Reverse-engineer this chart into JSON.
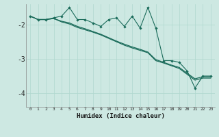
{
  "xlabel": "Humidex (Indice chaleur)",
  "bg_color": "#cde8e2",
  "grid_color": "#b0d8cf",
  "line_color": "#1a6b5a",
  "x": [
    0,
    1,
    2,
    3,
    4,
    5,
    6,
    7,
    8,
    9,
    10,
    11,
    12,
    13,
    14,
    15,
    16,
    17,
    18,
    19,
    20,
    21,
    22,
    23
  ],
  "line_jagged": [
    -1.75,
    -1.85,
    -1.85,
    -1.8,
    -1.75,
    -1.5,
    -1.85,
    -1.85,
    -1.95,
    -2.05,
    -1.85,
    -1.8,
    -2.05,
    -1.75,
    -2.1,
    -1.5,
    -2.1,
    -3.05,
    -3.05,
    -3.1,
    -3.35,
    -3.85,
    -3.5,
    -3.5
  ],
  "line_smooth1": [
    -1.75,
    -1.85,
    -1.85,
    -1.82,
    -1.9,
    -1.95,
    -2.05,
    -2.12,
    -2.2,
    -2.28,
    -2.38,
    -2.48,
    -2.57,
    -2.65,
    -2.72,
    -2.8,
    -3.02,
    -3.1,
    -3.18,
    -3.25,
    -3.42,
    -3.58,
    -3.52,
    -3.52
  ],
  "line_smooth2": [
    -1.75,
    -1.85,
    -1.85,
    -1.82,
    -1.92,
    -1.98,
    -2.08,
    -2.15,
    -2.22,
    -2.3,
    -2.4,
    -2.5,
    -2.6,
    -2.68,
    -2.75,
    -2.82,
    -3.05,
    -3.12,
    -3.2,
    -3.28,
    -3.45,
    -3.62,
    -3.56,
    -3.56
  ],
  "xlim": [
    -0.5,
    23.5
  ],
  "ylim": [
    -4.4,
    -1.4
  ],
  "yticks": [
    -4,
    -3,
    -2
  ],
  "xtick_labels": [
    "0",
    "1",
    "2",
    "3",
    "4",
    "5",
    "6",
    "7",
    "8",
    "9",
    "10",
    "11",
    "12",
    "13",
    "14",
    "15",
    "16",
    "17",
    "18",
    "19",
    "20",
    "21",
    "22",
    "23"
  ]
}
